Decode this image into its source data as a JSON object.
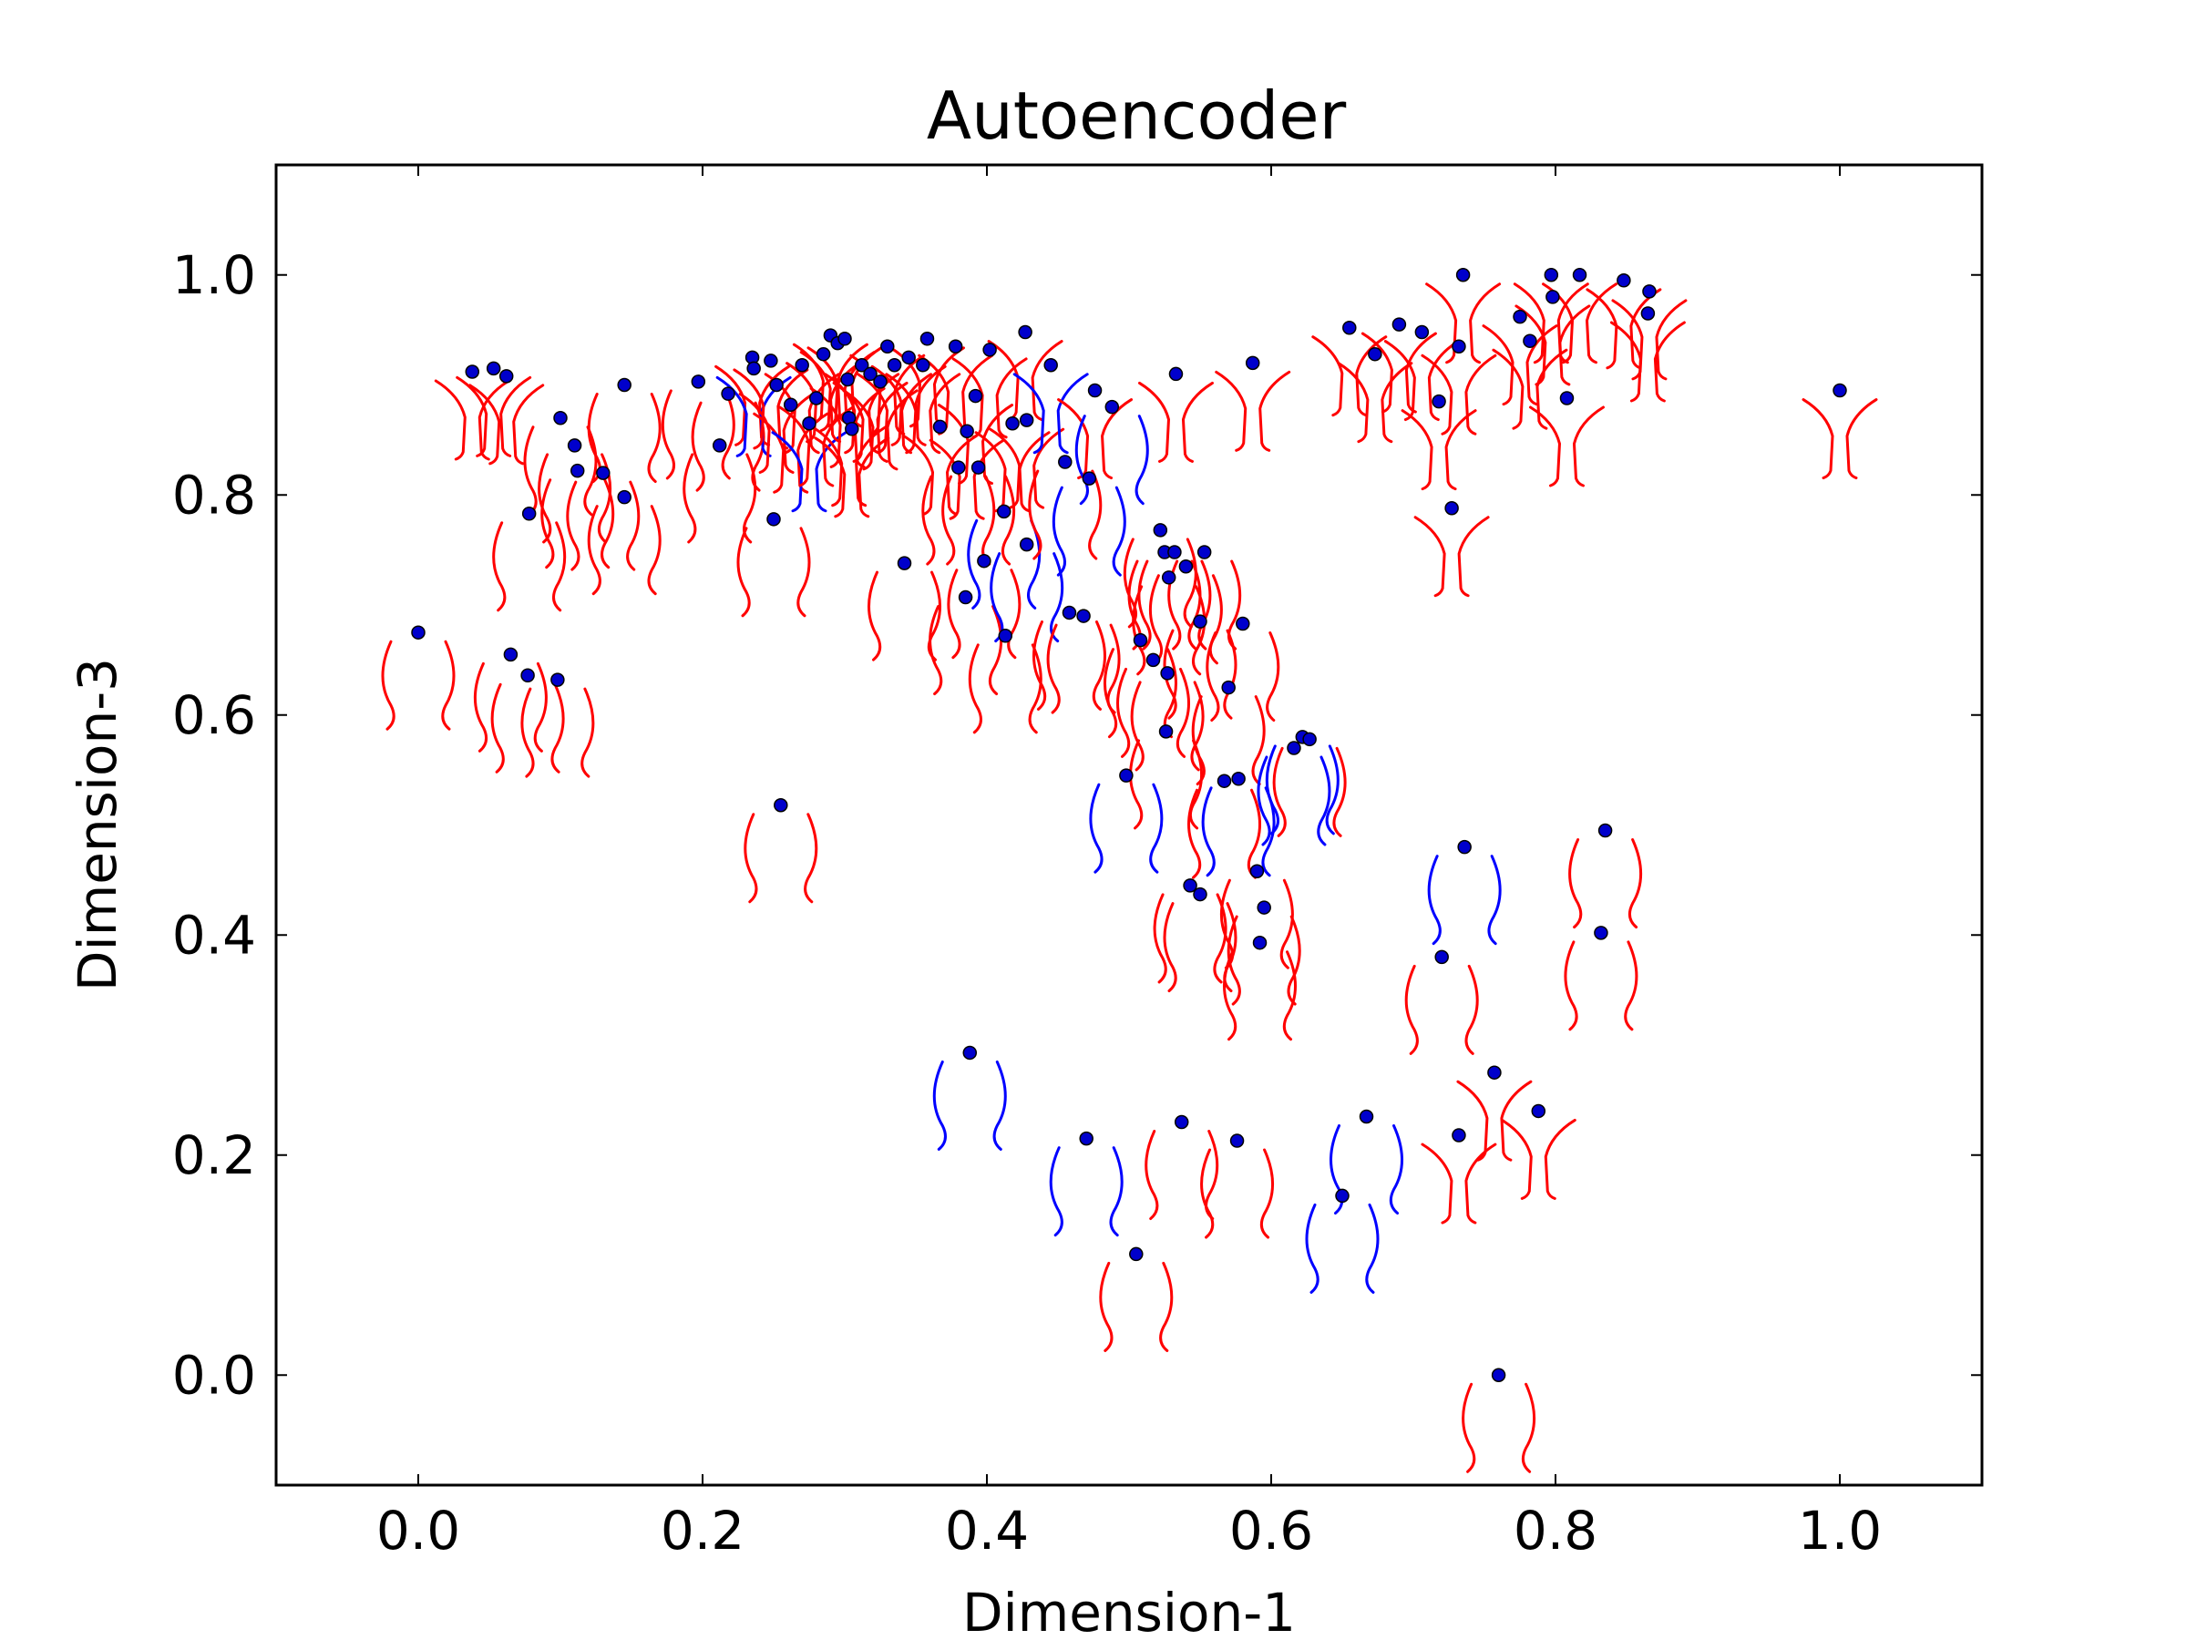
{
  "chart_data": {
    "type": "scatter",
    "title": "Autoencoder",
    "xlabel": "Dimension-1",
    "ylabel": "Dimension-3",
    "xlim": [
      -0.1,
      1.1
    ],
    "ylim": [
      -0.1,
      1.1
    ],
    "xticks": [
      "0.0",
      "0.2",
      "0.4",
      "0.6",
      "0.8",
      "1.0"
    ],
    "yticks": [
      "0.0",
      "0.2",
      "0.4",
      "0.6",
      "0.8",
      "1.0"
    ],
    "grid": false,
    "legend": "none",
    "colors": {
      "point_fill": "#0000cc",
      "point_edge": "#000000",
      "glyph_red": "#ff0000",
      "glyph_blue": "#0000ff"
    },
    "points": [
      {
        "x": 0.0,
        "y": 0.675,
        "g": "u",
        "c": "r"
      },
      {
        "x": 0.038,
        "y": 0.912,
        "g": "y",
        "c": "r"
      },
      {
        "x": 0.053,
        "y": 0.915,
        "g": "y",
        "c": "r"
      },
      {
        "x": 0.062,
        "y": 0.908,
        "g": "y",
        "c": "r"
      },
      {
        "x": 0.065,
        "y": 0.655,
        "g": "u",
        "c": "r"
      },
      {
        "x": 0.077,
        "y": 0.636,
        "g": "u",
        "c": "r"
      },
      {
        "x": 0.078,
        "y": 0.783,
        "g": "u",
        "c": "r"
      },
      {
        "x": 0.098,
        "y": 0.632,
        "g": "u",
        "c": "r"
      },
      {
        "x": 0.1,
        "y": 0.87,
        "g": "u",
        "c": "r"
      },
      {
        "x": 0.11,
        "y": 0.845,
        "g": "u",
        "c": "r"
      },
      {
        "x": 0.112,
        "y": 0.822,
        "g": "u",
        "c": "r"
      },
      {
        "x": 0.13,
        "y": 0.82,
        "g": "u",
        "c": "r"
      },
      {
        "x": 0.145,
        "y": 0.9,
        "g": "u",
        "c": "r"
      },
      {
        "x": 0.145,
        "y": 0.798,
        "g": "u",
        "c": "r"
      },
      {
        "x": 0.197,
        "y": 0.903,
        "g": "u",
        "c": "r"
      },
      {
        "x": 0.212,
        "y": 0.845,
        "g": "u",
        "c": "r"
      },
      {
        "x": 0.218,
        "y": 0.892,
        "g": "u",
        "c": "r"
      },
      {
        "x": 0.235,
        "y": 0.925,
        "g": "y",
        "c": "r"
      },
      {
        "x": 0.236,
        "y": 0.915,
        "g": "y",
        "c": "b"
      },
      {
        "x": 0.248,
        "y": 0.922,
        "g": "y",
        "c": "r"
      },
      {
        "x": 0.25,
        "y": 0.778,
        "g": "u",
        "c": "r"
      },
      {
        "x": 0.252,
        "y": 0.9,
        "g": "y",
        "c": "r"
      },
      {
        "x": 0.255,
        "y": 0.518,
        "g": "u",
        "c": "r"
      },
      {
        "x": 0.262,
        "y": 0.882,
        "g": "y",
        "c": "r"
      },
      {
        "x": 0.27,
        "y": 0.918,
        "g": "y",
        "c": "r"
      },
      {
        "x": 0.275,
        "y": 0.865,
        "g": "y",
        "c": "b"
      },
      {
        "x": 0.28,
        "y": 0.888,
        "g": "y",
        "c": "r"
      },
      {
        "x": 0.285,
        "y": 0.928,
        "g": "y",
        "c": "r"
      },
      {
        "x": 0.29,
        "y": 0.945,
        "g": "y",
        "c": "r"
      },
      {
        "x": 0.295,
        "y": 0.938,
        "g": "y",
        "c": "r"
      },
      {
        "x": 0.3,
        "y": 0.942,
        "g": "y",
        "c": "r"
      },
      {
        "x": 0.302,
        "y": 0.905,
        "g": "y",
        "c": "r"
      },
      {
        "x": 0.303,
        "y": 0.87,
        "g": "y",
        "c": "r"
      },
      {
        "x": 0.305,
        "y": 0.86,
        "g": "y",
        "c": "r"
      },
      {
        "x": 0.312,
        "y": 0.918,
        "g": "y",
        "c": "r"
      },
      {
        "x": 0.318,
        "y": 0.91,
        "g": "y",
        "c": "r"
      },
      {
        "x": 0.325,
        "y": 0.903,
        "g": "y",
        "c": "r"
      },
      {
        "x": 0.33,
        "y": 0.935,
        "g": "y",
        "c": "r"
      },
      {
        "x": 0.335,
        "y": 0.918,
        "g": "y",
        "c": "r"
      },
      {
        "x": 0.342,
        "y": 0.738,
        "g": "u",
        "c": "r"
      },
      {
        "x": 0.345,
        "y": 0.925,
        "g": "y",
        "c": "r"
      },
      {
        "x": 0.355,
        "y": 0.918,
        "g": "y",
        "c": "r"
      },
      {
        "x": 0.358,
        "y": 0.942,
        "g": "y",
        "c": "r"
      },
      {
        "x": 0.367,
        "y": 0.862,
        "g": "y",
        "c": "r"
      },
      {
        "x": 0.378,
        "y": 0.935,
        "g": "y",
        "c": "r"
      },
      {
        "x": 0.38,
        "y": 0.825,
        "g": "u",
        "c": "r"
      },
      {
        "x": 0.385,
        "y": 0.707,
        "g": "u",
        "c": "r"
      },
      {
        "x": 0.386,
        "y": 0.858,
        "g": "y",
        "c": "r"
      },
      {
        "x": 0.388,
        "y": 0.293,
        "g": "u",
        "c": "b"
      },
      {
        "x": 0.392,
        "y": 0.89,
        "g": "y",
        "c": "r"
      },
      {
        "x": 0.394,
        "y": 0.825,
        "g": "u",
        "c": "r"
      },
      {
        "x": 0.398,
        "y": 0.74,
        "g": "u",
        "c": "r"
      },
      {
        "x": 0.402,
        "y": 0.932,
        "g": "y",
        "c": "r"
      },
      {
        "x": 0.412,
        "y": 0.785,
        "g": "u",
        "c": "b"
      },
      {
        "x": 0.413,
        "y": 0.672,
        "g": "u",
        "c": "r"
      },
      {
        "x": 0.418,
        "y": 0.865,
        "g": "y",
        "c": "r"
      },
      {
        "x": 0.427,
        "y": 0.948,
        "g": "y",
        "c": "r"
      },
      {
        "x": 0.428,
        "y": 0.868,
        "g": "y",
        "c": "r"
      },
      {
        "x": 0.428,
        "y": 0.755,
        "g": "u",
        "c": "b"
      },
      {
        "x": 0.445,
        "y": 0.918,
        "g": "y",
        "c": "b"
      },
      {
        "x": 0.455,
        "y": 0.83,
        "g": "u",
        "c": "r"
      },
      {
        "x": 0.458,
        "y": 0.693,
        "g": "u",
        "c": "r"
      },
      {
        "x": 0.468,
        "y": 0.69,
        "g": "u",
        "c": "r"
      },
      {
        "x": 0.47,
        "y": 0.215,
        "g": "u",
        "c": "b"
      },
      {
        "x": 0.472,
        "y": 0.815,
        "g": "u",
        "c": "b"
      },
      {
        "x": 0.476,
        "y": 0.895,
        "g": "y",
        "c": "r"
      },
      {
        "x": 0.488,
        "y": 0.88,
        "g": "u",
        "c": "b"
      },
      {
        "x": 0.498,
        "y": 0.545,
        "g": "u",
        "c": "b"
      },
      {
        "x": 0.505,
        "y": 0.11,
        "g": "u",
        "c": "r"
      },
      {
        "x": 0.508,
        "y": 0.668,
        "g": "u",
        "c": "r"
      },
      {
        "x": 0.517,
        "y": 0.65,
        "g": "u",
        "c": "r"
      },
      {
        "x": 0.522,
        "y": 0.768,
        "g": "u",
        "c": "r"
      },
      {
        "x": 0.525,
        "y": 0.748,
        "g": "u",
        "c": "r"
      },
      {
        "x": 0.526,
        "y": 0.585,
        "g": "u",
        "c": "r"
      },
      {
        "x": 0.527,
        "y": 0.638,
        "g": "u",
        "c": "r"
      },
      {
        "x": 0.528,
        "y": 0.725,
        "g": "u",
        "c": "r"
      },
      {
        "x": 0.532,
        "y": 0.748,
        "g": "u",
        "c": "r"
      },
      {
        "x": 0.533,
        "y": 0.91,
        "g": "y",
        "c": "r"
      },
      {
        "x": 0.537,
        "y": 0.23,
        "g": "u",
        "c": "r"
      },
      {
        "x": 0.54,
        "y": 0.735,
        "g": "u",
        "c": "r"
      },
      {
        "x": 0.543,
        "y": 0.445,
        "g": "u",
        "c": "r"
      },
      {
        "x": 0.55,
        "y": 0.437,
        "g": "u",
        "c": "r"
      },
      {
        "x": 0.55,
        "y": 0.685,
        "g": "u",
        "c": "r"
      },
      {
        "x": 0.553,
        "y": 0.748,
        "g": "u",
        "c": "r"
      },
      {
        "x": 0.567,
        "y": 0.54,
        "g": "u",
        "c": "r"
      },
      {
        "x": 0.57,
        "y": 0.625,
        "g": "u",
        "c": "r"
      },
      {
        "x": 0.576,
        "y": 0.213,
        "g": "u",
        "c": "r"
      },
      {
        "x": 0.577,
        "y": 0.542,
        "g": "u",
        "c": "b"
      },
      {
        "x": 0.58,
        "y": 0.683,
        "g": "u",
        "c": "r"
      },
      {
        "x": 0.587,
        "y": 0.92,
        "g": "y",
        "c": "r"
      },
      {
        "x": 0.59,
        "y": 0.458,
        "g": "u",
        "c": "r"
      },
      {
        "x": 0.592,
        "y": 0.393,
        "g": "u",
        "c": "r"
      },
      {
        "x": 0.595,
        "y": 0.425,
        "g": "u",
        "c": "r"
      },
      {
        "x": 0.616,
        "y": 0.57,
        "g": "u",
        "c": "b"
      },
      {
        "x": 0.622,
        "y": 0.58,
        "g": "u",
        "c": "b"
      },
      {
        "x": 0.627,
        "y": 0.578,
        "g": "u",
        "c": "r"
      },
      {
        "x": 0.65,
        "y": 0.163,
        "g": "u",
        "c": "b"
      },
      {
        "x": 0.655,
        "y": 0.952,
        "g": "y",
        "c": "r"
      },
      {
        "x": 0.667,
        "y": 0.235,
        "g": "u",
        "c": "b"
      },
      {
        "x": 0.673,
        "y": 0.928,
        "g": "y",
        "c": "r"
      },
      {
        "x": 0.69,
        "y": 0.955,
        "g": "y",
        "c": "r"
      },
      {
        "x": 0.706,
        "y": 0.948,
        "g": "y",
        "c": "r"
      },
      {
        "x": 0.718,
        "y": 0.885,
        "g": "y",
        "c": "r"
      },
      {
        "x": 0.72,
        "y": 0.38,
        "g": "u",
        "c": "r"
      },
      {
        "x": 0.727,
        "y": 0.788,
        "g": "y",
        "c": "r"
      },
      {
        "x": 0.732,
        "y": 0.935,
        "g": "y",
        "c": "r"
      },
      {
        "x": 0.732,
        "y": 0.218,
        "g": "y",
        "c": "r"
      },
      {
        "x": 0.735,
        "y": 1.0,
        "g": "y",
        "c": "r"
      },
      {
        "x": 0.736,
        "y": 0.48,
        "g": "u",
        "c": "b"
      },
      {
        "x": 0.757,
        "y": 0.275,
        "g": "y",
        "c": "r"
      },
      {
        "x": 0.76,
        "y": 0.0,
        "g": "u",
        "c": "r"
      },
      {
        "x": 0.775,
        "y": 0.962,
        "g": "y",
        "c": "r"
      },
      {
        "x": 0.782,
        "y": 0.94,
        "g": "y",
        "c": "r"
      },
      {
        "x": 0.788,
        "y": 0.24,
        "g": "y",
        "c": "r"
      },
      {
        "x": 0.797,
        "y": 1.0,
        "g": "y",
        "c": "r"
      },
      {
        "x": 0.798,
        "y": 0.98,
        "g": "y",
        "c": "r"
      },
      {
        "x": 0.808,
        "y": 0.888,
        "g": "y",
        "c": "r"
      },
      {
        "x": 0.817,
        "y": 1.0,
        "g": "y",
        "c": "r"
      },
      {
        "x": 0.832,
        "y": 0.402,
        "g": "u",
        "c": "r"
      },
      {
        "x": 0.835,
        "y": 0.495,
        "g": "u",
        "c": "r"
      },
      {
        "x": 0.848,
        "y": 0.995,
        "g": "y",
        "c": "r"
      },
      {
        "x": 0.865,
        "y": 0.965,
        "g": "y",
        "c": "r"
      },
      {
        "x": 0.866,
        "y": 0.985,
        "g": "y",
        "c": "r"
      },
      {
        "x": 1.0,
        "y": 0.895,
        "g": "y",
        "c": "r"
      }
    ]
  }
}
